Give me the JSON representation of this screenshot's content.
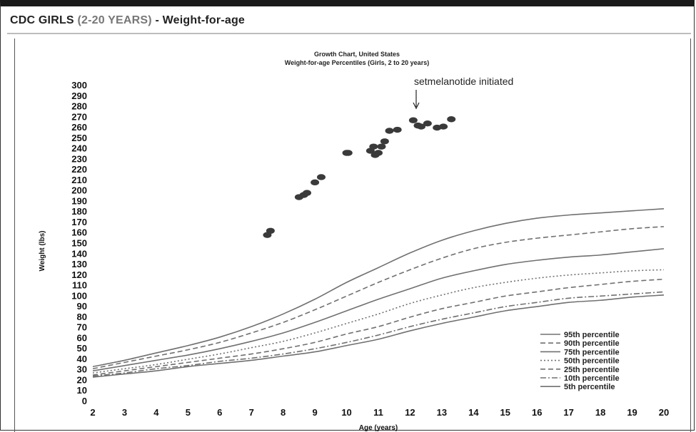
{
  "header": {
    "prefix": "CDC GIRLS ",
    "range": "(2-20 YEARS)",
    "suffix": " - Weight-for-age"
  },
  "chart_data": {
    "type": "line",
    "title": "Growth Chart, United States",
    "subtitle": "Weight-for-age Percentiles (Girls, 2 to 20 years)",
    "xlabel": "Age (years)",
    "ylabel": "Weight (lbs)",
    "xlim": [
      2,
      20
    ],
    "ylim": [
      0,
      300
    ],
    "x_ticks": [
      2,
      3,
      4,
      5,
      6,
      7,
      8,
      9,
      10,
      11,
      12,
      13,
      14,
      15,
      16,
      17,
      18,
      19,
      20
    ],
    "y_ticks": [
      0,
      10,
      20,
      30,
      40,
      50,
      60,
      70,
      80,
      90,
      100,
      110,
      120,
      130,
      140,
      150,
      160,
      170,
      180,
      190,
      200,
      210,
      220,
      230,
      240,
      250,
      260,
      270,
      280,
      290,
      300
    ],
    "grid": false,
    "legend_position": "bottom-right",
    "annotation": {
      "text": "setmelanotide initiated",
      "x": 12.2,
      "y": 268
    },
    "patient_points": [
      {
        "x": 7.5,
        "y": 158
      },
      {
        "x": 7.6,
        "y": 162
      },
      {
        "x": 8.5,
        "y": 194
      },
      {
        "x": 8.65,
        "y": 196
      },
      {
        "x": 8.75,
        "y": 198
      },
      {
        "x": 9.0,
        "y": 208
      },
      {
        "x": 9.2,
        "y": 213
      },
      {
        "x": 10.0,
        "y": 236
      },
      {
        "x": 10.05,
        "y": 236
      },
      {
        "x": 10.75,
        "y": 238
      },
      {
        "x": 10.85,
        "y": 242
      },
      {
        "x": 10.9,
        "y": 234
      },
      {
        "x": 11.0,
        "y": 236
      },
      {
        "x": 11.1,
        "y": 242
      },
      {
        "x": 11.2,
        "y": 247
      },
      {
        "x": 11.35,
        "y": 257
      },
      {
        "x": 11.6,
        "y": 258
      },
      {
        "x": 12.1,
        "y": 267
      },
      {
        "x": 12.25,
        "y": 262
      },
      {
        "x": 12.35,
        "y": 261
      },
      {
        "x": 12.55,
        "y": 264
      },
      {
        "x": 12.85,
        "y": 260
      },
      {
        "x": 13.05,
        "y": 261
      },
      {
        "x": 13.3,
        "y": 268
      }
    ],
    "x": [
      2,
      3,
      4,
      5,
      6,
      7,
      8,
      9,
      10,
      11,
      12,
      13,
      14,
      15,
      16,
      17,
      18,
      19,
      20
    ],
    "series": [
      {
        "name": "95th percentile",
        "style": "solid",
        "values": [
          33,
          39,
          46,
          53,
          61,
          71,
          83,
          97,
          113,
          127,
          141,
          153,
          162,
          169,
          174,
          177,
          179,
          181,
          183
        ]
      },
      {
        "name": "90th percentile",
        "style": "dashed",
        "values": [
          31,
          37,
          43,
          49,
          56,
          65,
          75,
          87,
          100,
          113,
          125,
          136,
          145,
          151,
          155,
          158,
          161,
          164,
          166
        ]
      },
      {
        "name": "75th percentile",
        "style": "solid",
        "values": [
          29,
          34,
          39,
          44,
          50,
          57,
          65,
          75,
          86,
          97,
          107,
          117,
          124,
          130,
          134,
          137,
          139,
          142,
          145
        ]
      },
      {
        "name": "50th percentile",
        "style": "dotted",
        "values": [
          27,
          31,
          35,
          40,
          45,
          51,
          57,
          65,
          74,
          83,
          93,
          101,
          108,
          113,
          117,
          120,
          122,
          124,
          125
        ]
      },
      {
        "name": "25th percentile",
        "style": "dashed",
        "values": [
          25,
          29,
          33,
          37,
          41,
          45,
          50,
          56,
          64,
          71,
          80,
          88,
          94,
          100,
          104,
          108,
          111,
          114,
          116
        ]
      },
      {
        "name": "10th percentile",
        "style": "dashdot",
        "values": [
          24,
          27,
          31,
          34,
          38,
          41,
          45,
          50,
          56,
          63,
          71,
          78,
          84,
          90,
          94,
          98,
          100,
          102,
          104
        ]
      },
      {
        "name": "5th percentile",
        "style": "solid",
        "values": [
          23,
          26,
          29,
          33,
          36,
          39,
          43,
          47,
          53,
          59,
          67,
          74,
          80,
          86,
          90,
          94,
          96,
          99,
          101
        ]
      }
    ]
  },
  "colors": {
    "curve": "#707070",
    "points": "#3a3a3a",
    "text": "#111111"
  }
}
